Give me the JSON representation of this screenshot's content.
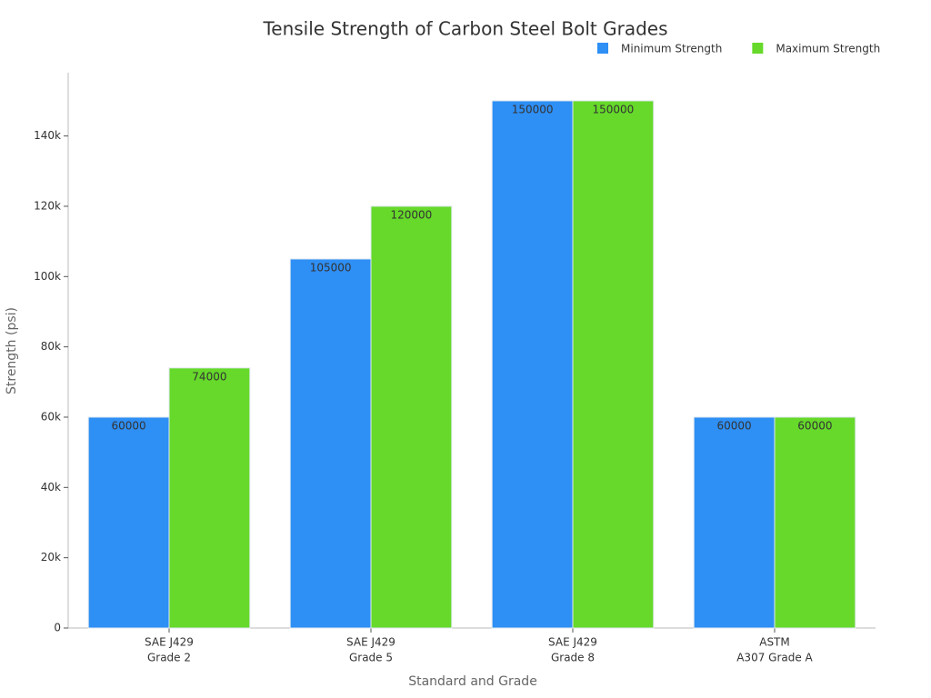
{
  "chart_data": {
    "type": "bar",
    "title": "Tensile Strength of Carbon Steel Bolt Grades",
    "x_label": "Standard and Grade",
    "y_label": "Strength (psi)",
    "categories": [
      [
        "SAE J429",
        "Grade 2"
      ],
      [
        "SAE J429",
        "Grade 5"
      ],
      [
        "SAE J429",
        "Grade 8"
      ],
      [
        "ASTM",
        "A307 Grade A"
      ]
    ],
    "series": [
      {
        "name": "Minimum Strength",
        "color": "#2e8ff5",
        "values": [
          60000,
          105000,
          150000,
          60000
        ]
      },
      {
        "name": "Maximum Strength",
        "color": "#66d92a",
        "values": [
          74000,
          120000,
          150000,
          60000
        ]
      }
    ],
    "ylim": [
      0,
      158000
    ],
    "yticks": [
      0,
      {
        "value": 20000,
        "label": "20k"
      },
      {
        "value": 40000,
        "label": "40k"
      },
      {
        "value": 60000,
        "label": "60k"
      },
      {
        "value": 80000,
        "label": "80k"
      },
      {
        "value": 100000,
        "label": "100k"
      },
      {
        "value": 120000,
        "label": "120k"
      },
      {
        "value": 140000,
        "label": "140k"
      }
    ],
    "grid": false,
    "legend": "top-right"
  }
}
